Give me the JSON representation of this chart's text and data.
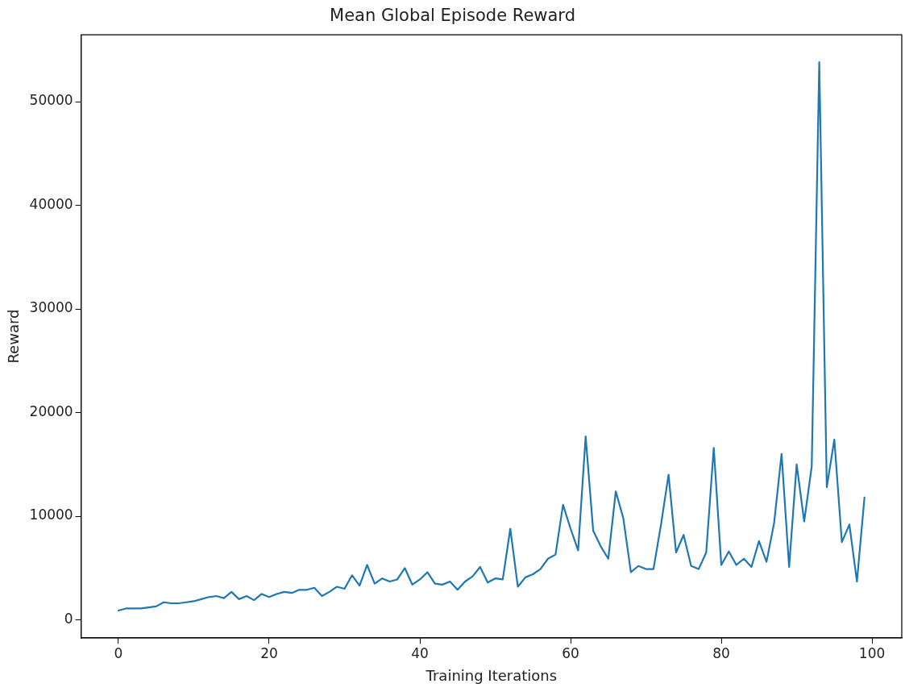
{
  "chart_data": {
    "type": "line",
    "title": "Mean Global Episode Reward",
    "xlabel": "Training Iterations",
    "ylabel": "Reward",
    "x": [
      0,
      1,
      2,
      3,
      4,
      5,
      6,
      7,
      8,
      9,
      10,
      11,
      12,
      13,
      14,
      15,
      16,
      17,
      18,
      19,
      20,
      21,
      22,
      23,
      24,
      25,
      26,
      27,
      28,
      29,
      30,
      31,
      32,
      33,
      34,
      35,
      36,
      37,
      38,
      39,
      40,
      41,
      42,
      43,
      44,
      45,
      46,
      47,
      48,
      49,
      50,
      51,
      52,
      53,
      54,
      55,
      56,
      57,
      58,
      59,
      60,
      61,
      62,
      63,
      64,
      65,
      66,
      67,
      68,
      69,
      70,
      71,
      72,
      73,
      74,
      75,
      76,
      77,
      78,
      79,
      80,
      81,
      82,
      83,
      84,
      85,
      86,
      87,
      88,
      89,
      90,
      91,
      92,
      93,
      94,
      95,
      96,
      97,
      98,
      99
    ],
    "series": [
      {
        "color": "#1f77b4",
        "values": [
          900,
          1100,
          1100,
          1100,
          1200,
          1300,
          1700,
          1600,
          1600,
          1700,
          1800,
          2000,
          2200,
          2300,
          2100,
          2700,
          2000,
          2300,
          1900,
          2500,
          2200,
          2500,
          2700,
          2600,
          2900,
          2900,
          3100,
          2300,
          2700,
          3200,
          3000,
          4300,
          3300,
          5300,
          3500,
          4000,
          3700,
          3900,
          5000,
          3400,
          3900,
          4600,
          3500,
          3400,
          3700,
          2900,
          3700,
          4200,
          5100,
          3600,
          4000,
          3900,
          8800,
          3200,
          4100,
          4400,
          4900,
          5900,
          6300,
          11100,
          8800,
          6700,
          17700,
          8600,
          7100,
          5900,
          12400,
          9800,
          4600,
          5200,
          4900,
          4900,
          9200,
          14000,
          6500,
          8200,
          5200,
          4900,
          6500,
          16600,
          5300,
          6600,
          5300,
          5900,
          5100,
          7600,
          5600,
          9300,
          16000,
          5100,
          15000,
          9500,
          14800,
          53800,
          12800,
          17400,
          7500,
          9200,
          3700,
          11800
        ]
      }
    ],
    "xlim": [
      -4.95,
      103.95
    ],
    "xticks": [
      0,
      20,
      40,
      60,
      80,
      100
    ],
    "ylim": [
      -1745,
      56445
    ],
    "yticks": [
      0,
      10000,
      20000,
      30000,
      40000,
      50000
    ],
    "grid": false,
    "legend": false,
    "marker": "none",
    "line_style": "solid"
  }
}
